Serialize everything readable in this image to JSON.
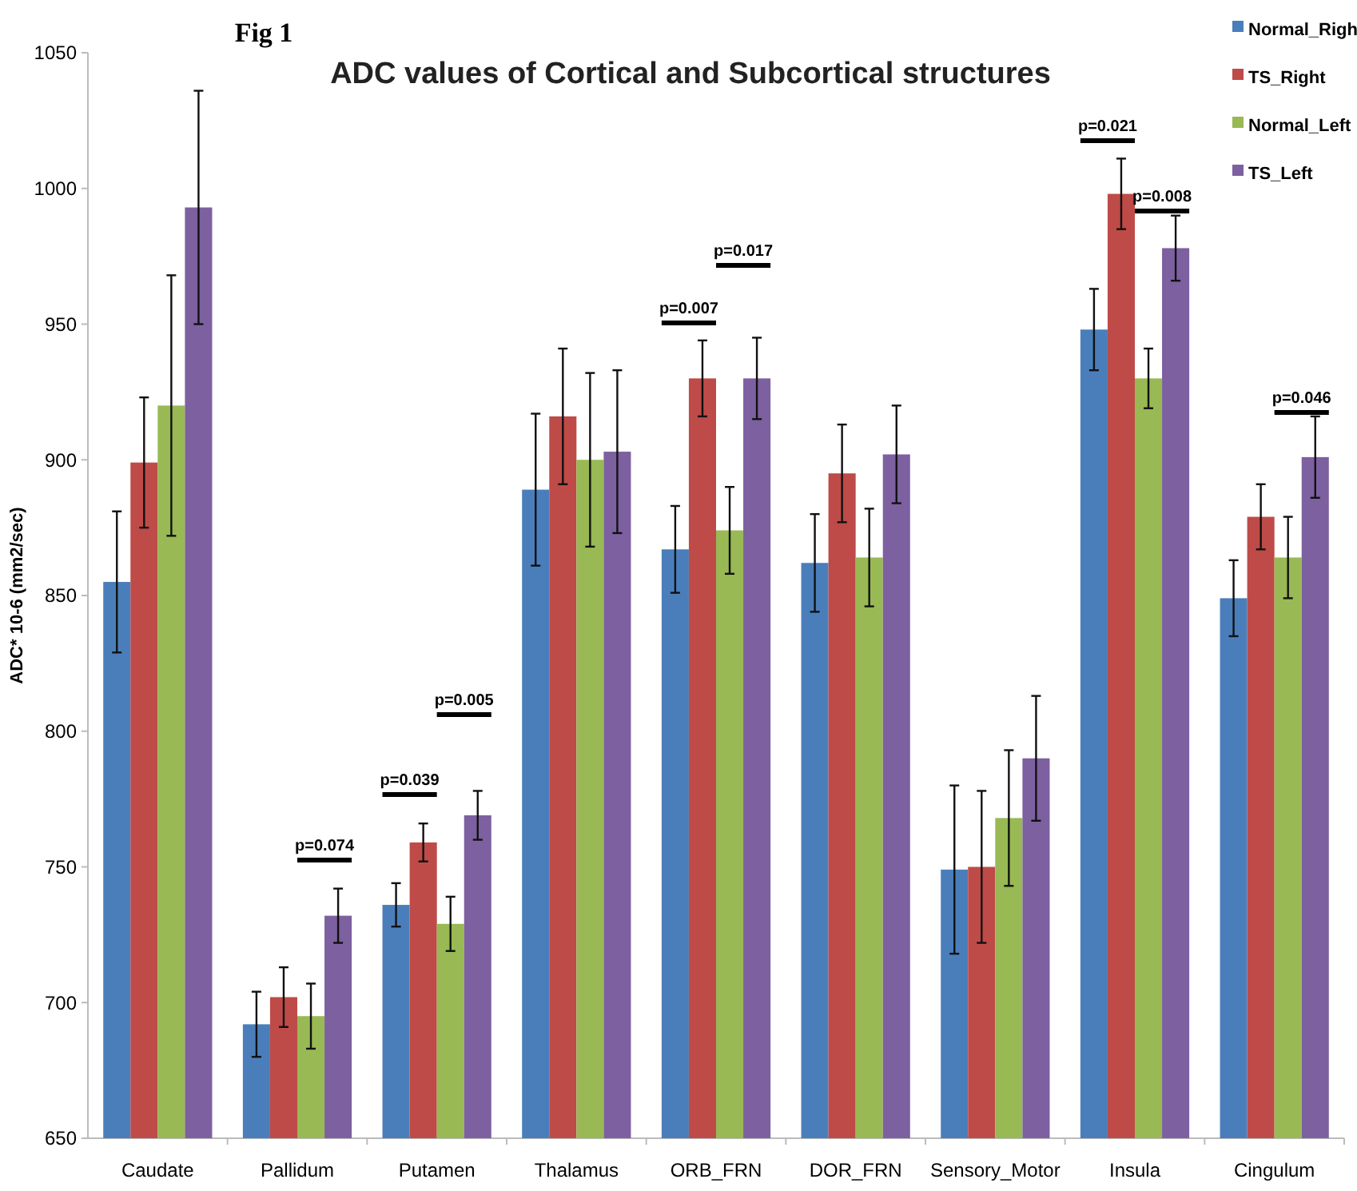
{
  "chart_data": {
    "type": "bar",
    "title": "ADC values of Cortical and Subcortical structures",
    "ylabel": "ADC* 10-6 (mm2/sec)",
    "categories": [
      "Caudate",
      "Pallidum",
      "Putamen",
      "Thalamus",
      "ORB_FRN",
      "DOR_FRN",
      "Sensory_Motor",
      "Insula",
      "Cingulum"
    ],
    "series": [
      {
        "name": "Normal_Righ",
        "color": "#4a7ebb",
        "values": [
          855,
          692,
          736,
          889,
          867,
          862,
          749,
          948,
          849
        ],
        "errors": [
          26,
          12,
          8,
          28,
          16,
          18,
          31,
          15,
          14
        ]
      },
      {
        "name": "TS_Right",
        "color": "#be4b48",
        "values": [
          899,
          702,
          759,
          916,
          930,
          895,
          750,
          998,
          879
        ],
        "errors": [
          24,
          11,
          7,
          25,
          14,
          18,
          28,
          13,
          12
        ]
      },
      {
        "name": "Normal_Left",
        "color": "#98b954",
        "values": [
          920,
          695,
          729,
          900,
          874,
          864,
          768,
          930,
          864
        ],
        "errors": [
          48,
          12,
          10,
          32,
          16,
          18,
          25,
          11,
          15
        ]
      },
      {
        "name": "TS_Left",
        "color": "#7d60a0",
        "values": [
          993,
          732,
          769,
          903,
          930,
          902,
          790,
          978,
          901
        ],
        "errors": [
          43,
          10,
          9,
          30,
          15,
          18,
          23,
          12,
          15
        ]
      }
    ],
    "ylim": [
      650,
      1050
    ],
    "yticks": [
      650,
      700,
      750,
      800,
      850,
      900,
      950,
      1000,
      1050
    ],
    "grid": false,
    "legend": "top right",
    "annotations": [
      "Fig 1",
      "p=0.074",
      "p=0.039",
      "p=0.005",
      "p=0.007",
      "p=0.017",
      "p=0.021",
      "p=0.008",
      "p=0.046"
    ]
  }
}
